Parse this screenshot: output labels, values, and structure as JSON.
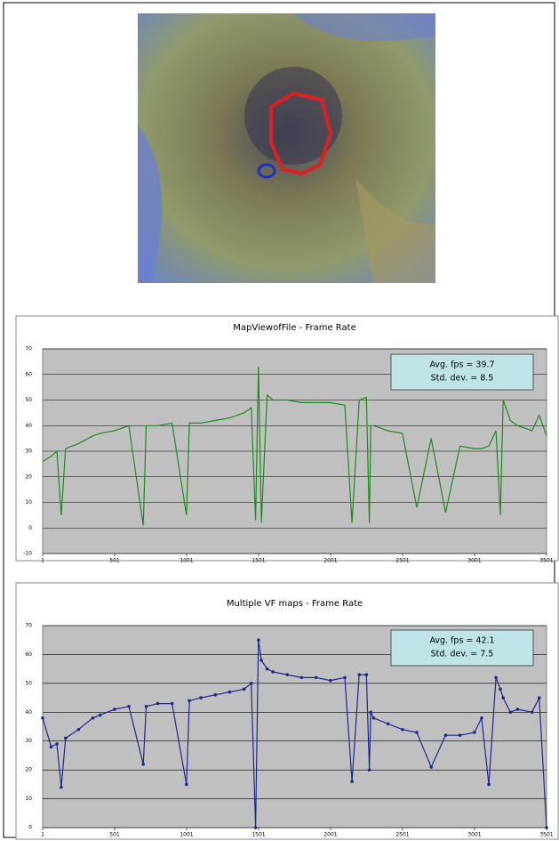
{
  "chart_data": [
    {
      "type": "line",
      "title": "MapViewofFile - Frame Rate",
      "annotations": [
        "Avg. fps = 39.7",
        "Std. dev. = 8.5"
      ],
      "x": [
        1,
        60,
        100,
        130,
        160,
        250,
        350,
        400,
        500,
        600,
        700,
        720,
        800,
        900,
        1000,
        1020,
        1100,
        1200,
        1300,
        1400,
        1450,
        1480,
        1500,
        1520,
        1560,
        1600,
        1700,
        1800,
        1900,
        2000,
        2100,
        2150,
        2200,
        2250,
        2270,
        2280,
        2300,
        2400,
        2500,
        2600,
        2700,
        2800,
        2900,
        3000,
        3050,
        3100,
        3150,
        3180,
        3200,
        3250,
        3300,
        3400,
        3450,
        3501
      ],
      "series": [
        {
          "color": "#1f8a1f",
          "values": [
            26,
            28,
            30,
            5,
            31,
            33,
            36,
            37,
            38,
            40,
            1,
            40,
            40,
            41,
            5,
            41,
            41,
            42,
            43,
            45,
            47,
            3,
            63,
            2,
            52,
            50,
            50,
            49,
            49,
            49,
            48,
            2,
            50,
            51,
            2,
            40,
            40,
            38,
            37,
            8,
            35,
            6,
            32,
            31,
            31,
            32,
            38,
            5,
            50,
            42,
            40,
            38,
            44,
            36
          ]
        }
      ],
      "xlim": [
        1,
        3501
      ],
      "xticks": [
        1,
        501,
        1001,
        1501,
        2001,
        2501,
        3001,
        3501
      ],
      "ylim": [
        -10,
        70
      ],
      "yticks": [
        -10,
        0,
        10,
        20,
        30,
        40,
        50,
        60,
        70
      ],
      "grid": true,
      "markers": false
    },
    {
      "type": "line",
      "title": "Multiple VF maps - Frame Rate",
      "annotations": [
        "Avg. fps = 42.1",
        "Std. dev. = 7.5"
      ],
      "x": [
        1,
        60,
        100,
        130,
        160,
        250,
        350,
        400,
        500,
        600,
        700,
        720,
        800,
        900,
        1000,
        1020,
        1100,
        1200,
        1300,
        1400,
        1450,
        1480,
        1500,
        1520,
        1560,
        1600,
        1700,
        1800,
        1900,
        2000,
        2100,
        2150,
        2200,
        2250,
        2270,
        2280,
        2300,
        2400,
        2500,
        2600,
        2700,
        2800,
        2900,
        3000,
        3050,
        3100,
        3150,
        3180,
        3200,
        3250,
        3300,
        3400,
        3450,
        3501
      ],
      "series": [
        {
          "color": "#1c2a8c",
          "values": [
            38,
            28,
            29,
            14,
            31,
            34,
            38,
            39,
            41,
            42,
            22,
            42,
            43,
            43,
            15,
            44,
            45,
            46,
            47,
            48,
            50,
            0,
            65,
            58,
            55,
            54,
            53,
            52,
            52,
            51,
            52,
            16,
            53,
            53,
            20,
            40,
            38,
            36,
            34,
            33,
            21,
            32,
            32,
            33,
            38,
            15,
            52,
            48,
            45,
            40,
            41,
            40,
            45,
            0
          ]
        }
      ],
      "xlim": [
        1,
        3501
      ],
      "xticks": [
        1,
        501,
        1001,
        1501,
        2001,
        2501,
        3001,
        3501
      ],
      "ylim": [
        0,
        70
      ],
      "yticks": [
        0,
        10,
        20,
        30,
        40,
        50,
        60,
        70
      ],
      "grid": true,
      "markers": true
    }
  ]
}
